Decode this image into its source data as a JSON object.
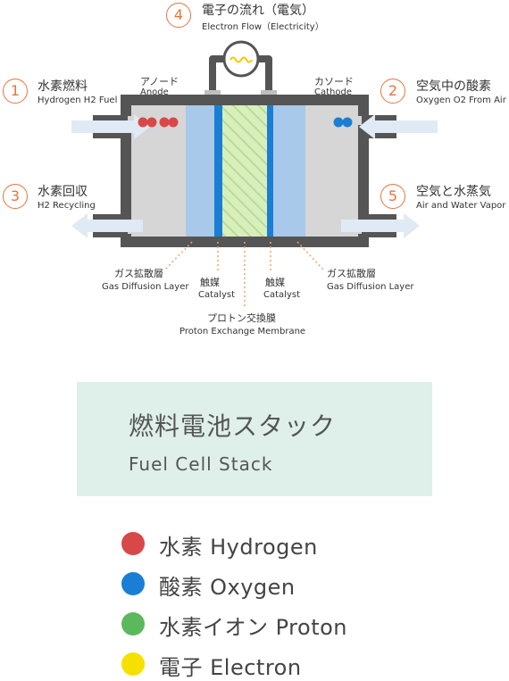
{
  "steps": [
    {
      "num": "1",
      "jp": "水素燃料",
      "en": "Hydrogen H2 Fuel"
    },
    {
      "num": "2",
      "jp": "空気中の酸素",
      "en": "Oxygen O2 From Air"
    },
    {
      "num": "3",
      "jp": "水素回収",
      "en": "H2 Recycling"
    },
    {
      "num": "4",
      "jp": "電子の流れ（電気）",
      "en": "Electron Flow（Electricity）"
    },
    {
      "num": "5",
      "jp": "空気と水蒸気",
      "en": "Air and Water Vapor"
    }
  ],
  "electrodes": {
    "anode_jp": "アノード",
    "anode_en": "Anode",
    "cathode_jp": "カソード",
    "cathode_en": "Cathode"
  },
  "layers": {
    "gdl_jp": "ガス拡散層",
    "gdl_en": "Gas Diffusion Layer",
    "catalyst_jp": "触媒",
    "catalyst_en": "Catalyst",
    "pem_jp": "プロトン交換膜",
    "pem_en": "Proton Exchange Membrane"
  },
  "stack": {
    "title_jp": "燃料電池スタック",
    "title_en": "Fuel Cell Stack"
  },
  "legend": [
    {
      "label": "水素 Hydrogen",
      "color": "#d94848"
    },
    {
      "label": "酸素 Oxygen",
      "color": "#1a7fd4"
    },
    {
      "label": "水素イオン Proton",
      "color": "#5cb85c"
    },
    {
      "label": "電子 Electron",
      "color": "#f5e000"
    }
  ],
  "colors": {
    "accent": "#e8743b",
    "frame": "#555555",
    "gdl": "#a9c9ea",
    "catalyst": "#1a7fd4",
    "membrane": "#d3ecb4",
    "chamber": "#d4d4d4",
    "arrow": "#dfeaf5"
  }
}
